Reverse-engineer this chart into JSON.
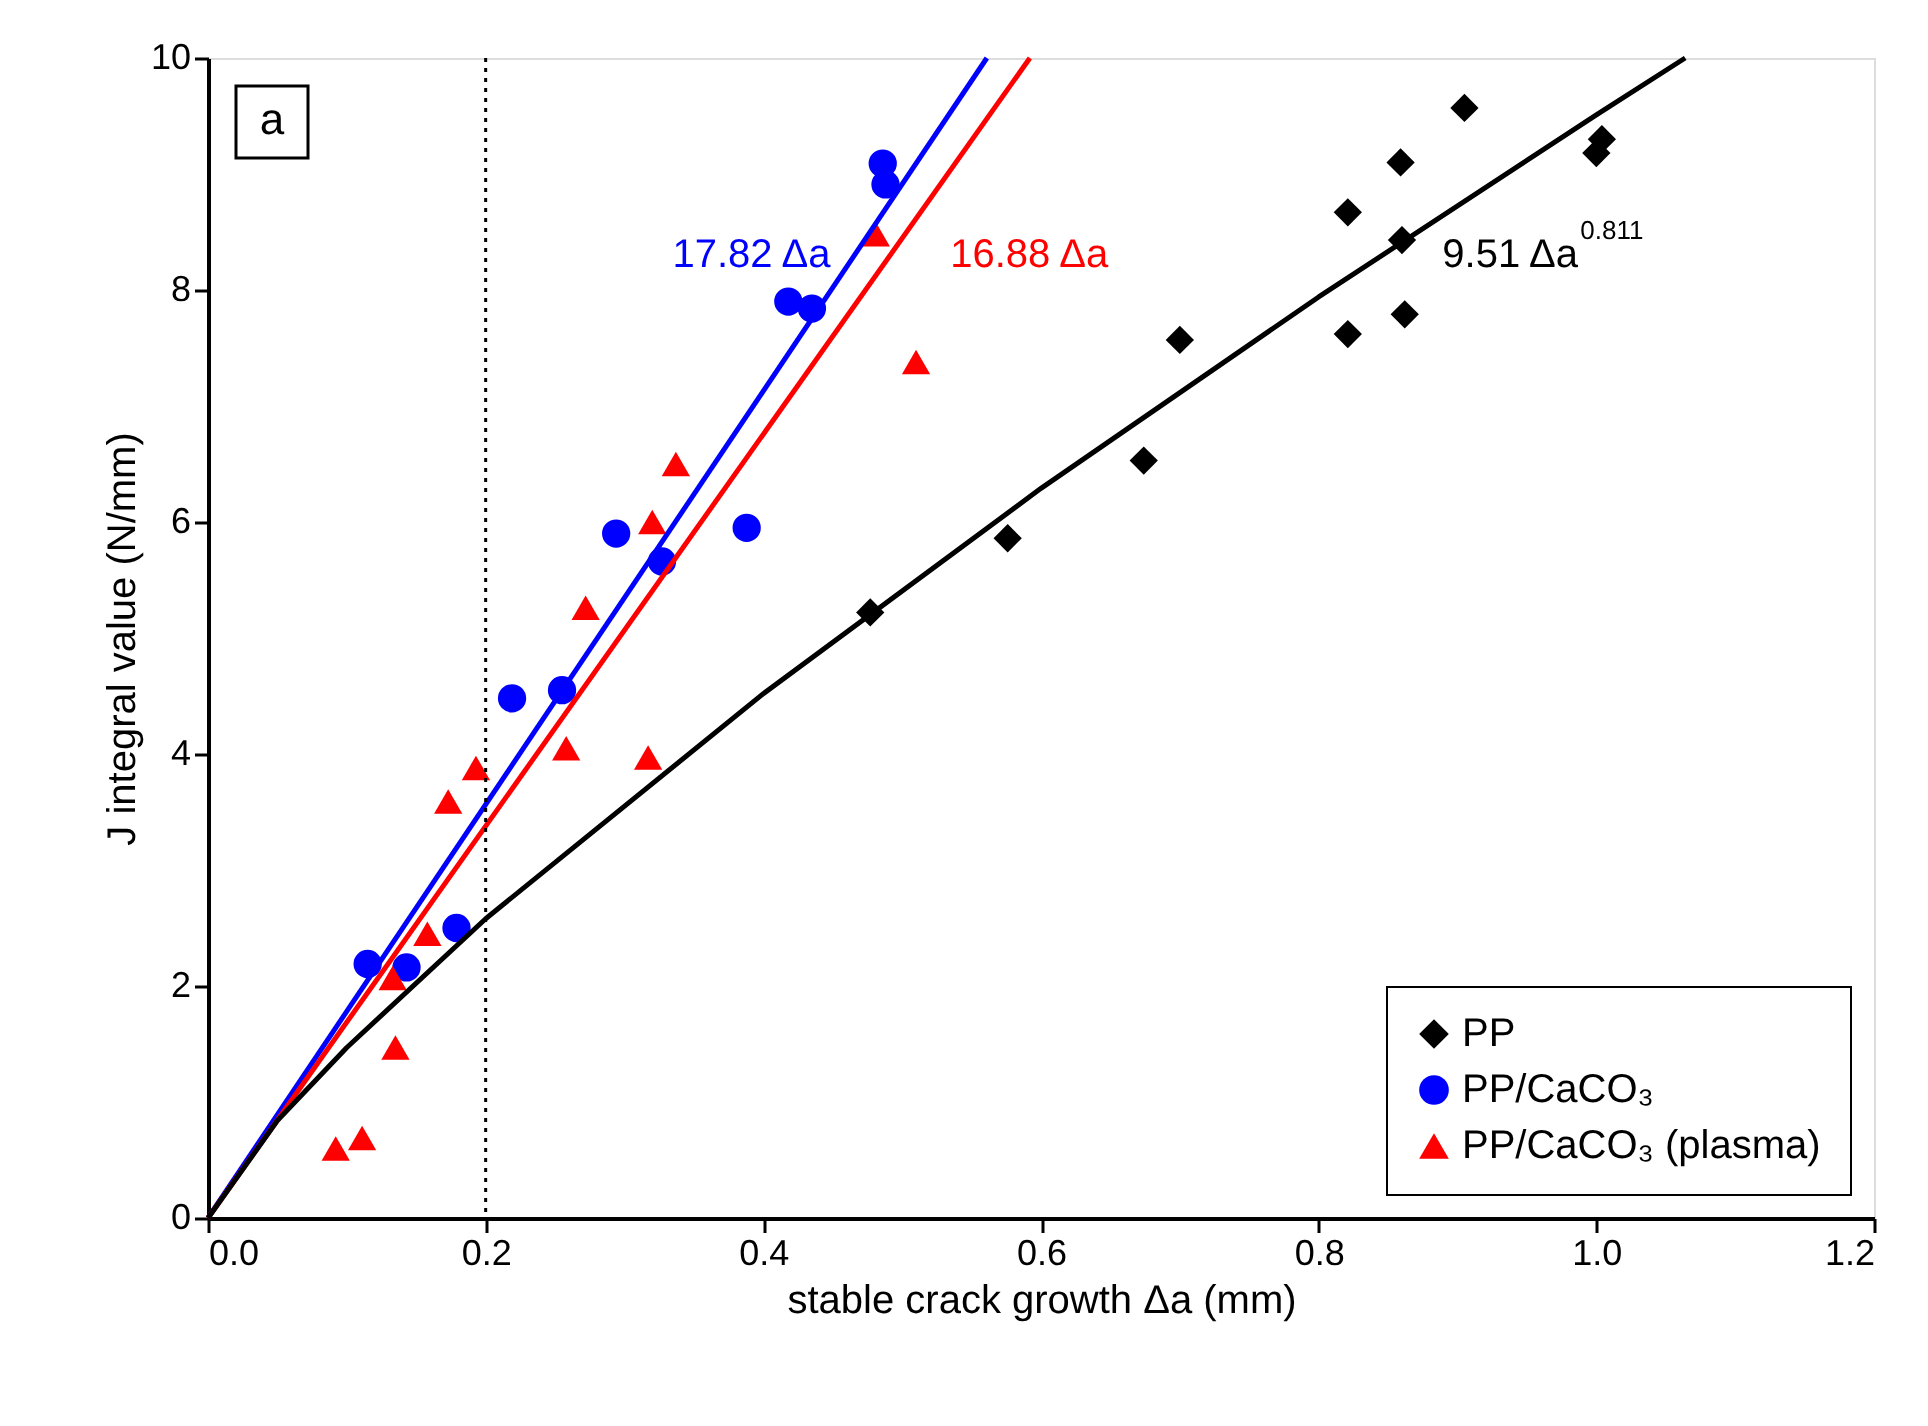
{
  "chart_data": {
    "type": "scatter",
    "xlabel": "stable crack growth Δa (mm)",
    "ylabel": "J integral value (N/mm)",
    "annotations": [
      "a"
    ],
    "xlim": [
      0,
      1.2
    ],
    "xticks": [
      {
        "value": 0,
        "label": "0.0"
      },
      {
        "value": 0.2,
        "label": "0.2"
      },
      {
        "value": 0.4,
        "label": "0.4"
      },
      {
        "value": 0.6,
        "label": "0.6"
      },
      {
        "value": 0.8,
        "label": "0.8"
      },
      {
        "value": 1,
        "label": "1.0"
      },
      {
        "value": 1.2,
        "label": "1.2"
      }
    ],
    "ylim": [
      0,
      10
    ],
    "yticks": [
      0,
      2,
      4,
      6,
      8,
      10
    ],
    "grid": false,
    "legend": "bottom right",
    "ref_lines": [
      {
        "axis": "x",
        "value": 0.2,
        "line_style": "dotted",
        "color": "#000000"
      }
    ],
    "series": [
      {
        "name": "PP",
        "marker": "diamond",
        "color": "#000000",
        "x": [
          0.477,
          0.576,
          0.674,
          0.7,
          0.821,
          0.821,
          0.859,
          0.86,
          0.862,
          0.905,
          1.0,
          1.004
        ],
        "values": [
          5.22,
          5.86,
          6.53,
          7.57,
          7.62,
          8.67,
          9.1,
          8.43,
          7.79,
          9.57,
          9.18,
          9.3
        ]
      },
      {
        "name": "PP/CaCO₃",
        "marker": "circle",
        "color": "#0000ff",
        "x": [
          0.115,
          0.143,
          0.179,
          0.219,
          0.255,
          0.294,
          0.327,
          0.388,
          0.418,
          0.435,
          0.486,
          0.488
        ],
        "values": [
          2.19,
          2.16,
          2.5,
          4.48,
          4.55,
          5.9,
          5.66,
          5.95,
          7.9,
          7.84,
          9.09,
          8.91
        ]
      },
      {
        "name": "PP/CaCO₃ (plasma)",
        "marker": "triangle",
        "color": "#ff0000",
        "x": [
          0.092,
          0.111,
          0.135,
          0.133,
          0.158,
          0.173,
          0.193,
          0.258,
          0.317,
          0.272,
          0.32,
          0.337,
          0.51,
          0.481
        ],
        "values": [
          0.6,
          0.69,
          1.47,
          2.07,
          2.45,
          3.59,
          3.88,
          4.05,
          3.97,
          5.26,
          6.0,
          6.5,
          7.38,
          8.48
        ]
      },
      {
        "name": "17.82 Δa",
        "type": "line",
        "marker": "none",
        "line_style": "solid",
        "color": "#0000ff",
        "x": [
          0,
          0.561
        ],
        "values": [
          0,
          10
        ]
      },
      {
        "name": "16.88 Δa",
        "type": "line",
        "marker": "none",
        "line_style": "solid",
        "color": "#ff0000",
        "x": [
          0,
          0.592
        ],
        "values": [
          0,
          10
        ]
      },
      {
        "name": "9.51 Δa$^{0.811}$",
        "type": "line",
        "marker": "none",
        "line_style": "solid",
        "color": "#000000",
        "x": [
          0,
          0.05,
          0.1,
          0.2,
          0.4,
          0.6,
          0.8,
          1.0,
          1.064
        ],
        "values": [
          0,
          0.84,
          1.47,
          2.58,
          4.52,
          6.29,
          7.94,
          9.51,
          10
        ]
      }
    ]
  }
}
